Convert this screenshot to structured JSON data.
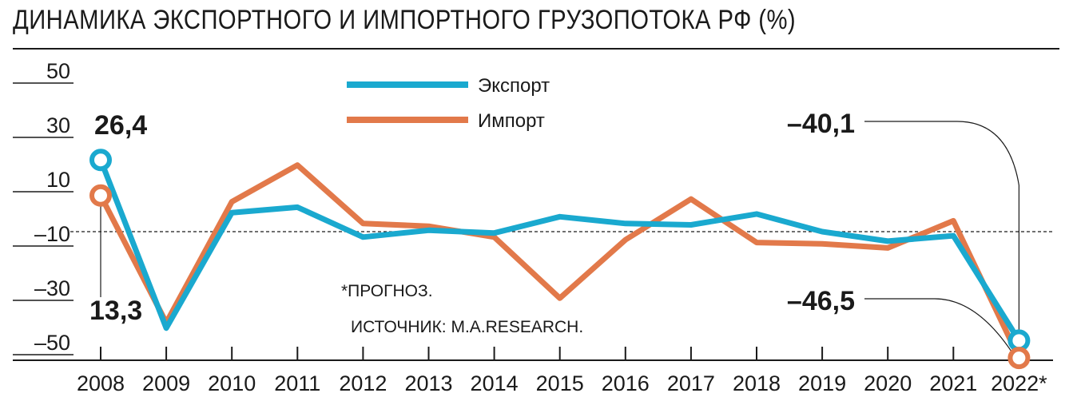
{
  "title": "ДИНАМИКА ЭКСПОРТНОГО И ИМПОРТНОГО ГРУЗОПОТОКА РФ (%)",
  "colors": {
    "export": "#1aa9cf",
    "import": "#e2794a",
    "text": "#1a1a1a"
  },
  "notes": {
    "forecast": "*ПРОГНОЗ.",
    "source": "ИСТОЧНИК: M.A.RESEARCH."
  },
  "chart_data": {
    "type": "line",
    "title": "ДИНАМИКА ЭКСПОРТНОГО И ИМПОРТНОГО ГРУЗОПОТОКА РФ (%)",
    "categories": [
      "2008",
      "2009",
      "2010",
      "2011",
      "2012",
      "2013",
      "2014",
      "2015",
      "2016",
      "2017",
      "2018",
      "2019",
      "2020",
      "2021",
      "2022*"
    ],
    "series": [
      {
        "name": "Экспорт",
        "values": [
          26.4,
          -35.5,
          7.0,
          9.0,
          -2.0,
          0.5,
          -0.5,
          5.5,
          3.0,
          2.5,
          6.5,
          0.0,
          -3.5,
          -1.5,
          -40.1
        ]
      },
      {
        "name": "Импорт",
        "values": [
          13.3,
          -33.5,
          11.0,
          24.5,
          3.0,
          2.0,
          -2.0,
          -24.5,
          -3.0,
          12.0,
          -4.0,
          -4.5,
          -6.0,
          4.0,
          -46.5
        ]
      }
    ],
    "y_ticks": [
      "50",
      "30",
      "10",
      "–10",
      "–30",
      "–50"
    ],
    "ylim": [
      -50,
      50
    ],
    "zero_line": "dashed",
    "legend_position": "top-center",
    "annotations": [
      {
        "label": "26,4",
        "series": "Экспорт",
        "category": "2008"
      },
      {
        "label": "13,3",
        "series": "Импорт",
        "category": "2008"
      },
      {
        "label": "–40,1",
        "series": "Экспорт",
        "category": "2022*"
      },
      {
        "label": "–46,5",
        "series": "Импорт",
        "category": "2022*"
      }
    ]
  }
}
